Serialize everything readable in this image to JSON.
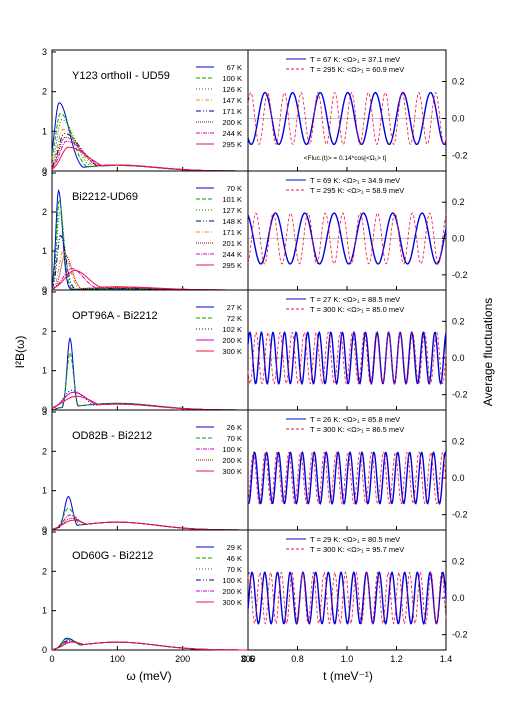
{
  "figure": {
    "left_axis_label": "I²B(ω)",
    "right_axis_label": "Average fluctuations",
    "left_xlabel": "ω (meV)",
    "right_xlabel": "t (meV⁻¹)",
    "annotation": "<Fluc.(t)> = 0.14*cos[<Ω₁> t]"
  },
  "chart_data": [
    {
      "type": "line",
      "title": "Y123 orthoII - UD59",
      "xlim": [
        0,
        0.6
      ],
      "ylim": [
        0,
        3
      ],
      "x_ticks": [
        "0",
        "100",
        "200",
        "300",
        "0.6"
      ],
      "y_ticks": [
        "0",
        "1",
        "2",
        "3"
      ],
      "legend_placement": "top-right",
      "series": [
        {
          "name": "67 K",
          "color": "#0000dd",
          "dash": "",
          "peak_x": 0.022,
          "peak_y": 1.72,
          "width_l": 0.014,
          "width_r": 0.03,
          "tail": 0.14
        },
        {
          "name": "100 K",
          "color": "#00aa00",
          "dash": "4,2",
          "peak_x": 0.026,
          "peak_y": 1.45,
          "width_l": 0.015,
          "width_r": 0.035,
          "tail": 0.14
        },
        {
          "name": "126 K",
          "color": "#008800",
          "dash": "1,2",
          "peak_x": 0.03,
          "peak_y": 1.3,
          "width_l": 0.015,
          "width_r": 0.04,
          "tail": 0.14
        },
        {
          "name": "147 K",
          "color": "#ff8800",
          "dash": "4,2,1,2",
          "peak_x": 0.034,
          "peak_y": 1.05,
          "width_l": 0.017,
          "width_r": 0.045,
          "tail": 0.14
        },
        {
          "name": "171 K",
          "color": "#000088",
          "dash": "5,2,1,2,1,2",
          "peak_x": 0.038,
          "peak_y": 0.95,
          "width_l": 0.018,
          "width_r": 0.05,
          "tail": 0.15
        },
        {
          "name": "200 K",
          "color": "#880000",
          "dash": "1,1",
          "peak_x": 0.04,
          "peak_y": 0.85,
          "width_l": 0.019,
          "width_r": 0.05,
          "tail": 0.15
        },
        {
          "name": "244 K",
          "color": "#cc00cc",
          "dash": "4,1,1,1",
          "peak_x": 0.044,
          "peak_y": 0.75,
          "width_l": 0.02,
          "width_r": 0.055,
          "tail": 0.15
        },
        {
          "name": "295 K",
          "color": "#ee1144",
          "dash": "",
          "peak_x": 0.05,
          "peak_y": 0.6,
          "width_l": 0.022,
          "width_r": 0.06,
          "tail": 0.15
        }
      ]
    },
    {
      "type": "line",
      "title": "Bi2212-UD69",
      "xlim": [
        0,
        0.6
      ],
      "ylim": [
        0,
        3
      ],
      "x_ticks": [
        "0",
        "100",
        "200",
        "300",
        "0.6"
      ],
      "y_ticks": [
        "0",
        "1",
        "2",
        "3"
      ],
      "legend_placement": "top-right",
      "series": [
        {
          "name": "70 K",
          "color": "#0000dd",
          "dash": "",
          "peak_x": 0.02,
          "peak_y": 2.55,
          "width_l": 0.008,
          "width_r": 0.012,
          "tail": 0.03
        },
        {
          "name": "101 K",
          "color": "#00aa00",
          "dash": "4,2",
          "peak_x": 0.022,
          "peak_y": 2.3,
          "width_l": 0.008,
          "width_r": 0.013,
          "tail": 0.03
        },
        {
          "name": "127 K",
          "color": "#008800",
          "dash": "1,2",
          "peak_x": 0.024,
          "peak_y": 2.0,
          "width_l": 0.009,
          "width_r": 0.014,
          "tail": 0.04
        },
        {
          "name": "148 K",
          "color": "#000088",
          "dash": "5,2,1,2,1,2",
          "peak_x": 0.026,
          "peak_y": 1.4,
          "width_l": 0.01,
          "width_r": 0.016,
          "tail": 0.04
        },
        {
          "name": "171 K",
          "color": "#ff8800",
          "dash": "4,2,1,2",
          "peak_x": 0.034,
          "peak_y": 1.0,
          "width_l": 0.012,
          "width_r": 0.02,
          "tail": 0.06
        },
        {
          "name": "201 K",
          "color": "#880000",
          "dash": "1,1",
          "peak_x": 0.04,
          "peak_y": 0.9,
          "width_l": 0.013,
          "width_r": 0.02,
          "tail": 0.06
        },
        {
          "name": "244 K",
          "color": "#cc00cc",
          "dash": "4,1,1,1",
          "peak_x": 0.06,
          "peak_y": 0.55,
          "width_l": 0.025,
          "width_r": 0.035,
          "tail": 0.08
        },
        {
          "name": "295 K",
          "color": "#ee1144",
          "dash": "",
          "peak_x": 0.07,
          "peak_y": 0.5,
          "width_l": 0.03,
          "width_r": 0.04,
          "tail": 0.08
        }
      ]
    },
    {
      "type": "line",
      "title": "OPT96A - Bi2212",
      "xlim": [
        0,
        0.6
      ],
      "ylim": [
        0,
        3
      ],
      "x_ticks": [
        "0",
        "100",
        "200",
        "300",
        "0.6"
      ],
      "y_ticks": [
        "0",
        "1",
        "2",
        "3"
      ],
      "legend_placement": "top-right",
      "series": [
        {
          "name": "27 K",
          "color": "#0000dd",
          "dash": "",
          "peak_x": 0.055,
          "peak_y": 1.82,
          "width_l": 0.009,
          "width_r": 0.01,
          "tail": 0.17
        },
        {
          "name": "72 K",
          "color": "#00aa00",
          "dash": "4,2",
          "peak_x": 0.055,
          "peak_y": 1.45,
          "width_l": 0.01,
          "width_r": 0.011,
          "tail": 0.17
        },
        {
          "name": "102 K",
          "color": "#000088",
          "dash": "1,2",
          "peak_x": 0.06,
          "peak_y": 0.5,
          "width_l": 0.025,
          "width_r": 0.04,
          "tail": 0.15
        },
        {
          "name": "200 K",
          "color": "#cc00cc",
          "dash": "",
          "peak_x": 0.065,
          "peak_y": 0.45,
          "width_l": 0.03,
          "width_r": 0.045,
          "tail": 0.15
        },
        {
          "name": "300 K",
          "color": "#ee1144",
          "dash": "",
          "peak_x": 0.075,
          "peak_y": 0.35,
          "width_l": 0.04,
          "width_r": 0.05,
          "tail": 0.15
        }
      ]
    },
    {
      "type": "line",
      "title": "OD82B - Bi2212",
      "xlim": [
        0,
        0.6
      ],
      "ylim": [
        0,
        3
      ],
      "x_ticks": [
        "0",
        "100",
        "200",
        "300",
        "0.6"
      ],
      "y_ticks": [
        "0",
        "1",
        "2",
        "3"
      ],
      "legend_placement": "top-right",
      "series": [
        {
          "name": "26 K",
          "color": "#0000dd",
          "dash": "",
          "peak_x": 0.05,
          "peak_y": 0.85,
          "width_l": 0.012,
          "width_r": 0.013,
          "tail": 0.2
        },
        {
          "name": "70 K",
          "color": "#00aa00",
          "dash": "4,2",
          "peak_x": 0.05,
          "peak_y": 0.55,
          "width_l": 0.016,
          "width_r": 0.02,
          "tail": 0.2
        },
        {
          "name": "100 K",
          "color": "#cc00cc",
          "dash": "4,1,1,1",
          "peak_x": 0.055,
          "peak_y": 0.38,
          "width_l": 0.02,
          "width_r": 0.03,
          "tail": 0.2
        },
        {
          "name": "200 K",
          "color": "#880000",
          "dash": "1,1",
          "peak_x": 0.06,
          "peak_y": 0.3,
          "width_l": 0.025,
          "width_r": 0.035,
          "tail": 0.2
        },
        {
          "name": "300 K",
          "color": "#ee1144",
          "dash": "",
          "peak_x": 0.065,
          "peak_y": 0.25,
          "width_l": 0.03,
          "width_r": 0.04,
          "tail": 0.2
        }
      ]
    },
    {
      "type": "line",
      "title": "OD60G - Bi2212",
      "xlim": [
        0,
        0.6
      ],
      "ylim": [
        0,
        3
      ],
      "x_ticks": [
        "0",
        "100",
        "200",
        "300",
        "0.6"
      ],
      "y_ticks": [
        "0",
        "1",
        "2",
        "3"
      ],
      "legend_placement": "top-right",
      "series": [
        {
          "name": "29 K",
          "color": "#0000dd",
          "dash": "",
          "peak_x": 0.045,
          "peak_y": 0.3,
          "width_l": 0.015,
          "width_r": 0.03,
          "tail": 0.2
        },
        {
          "name": "46 K",
          "color": "#00aa00",
          "dash": "4,2",
          "peak_x": 0.045,
          "peak_y": 0.28,
          "width_l": 0.016,
          "width_r": 0.032,
          "tail": 0.2
        },
        {
          "name": "70 K",
          "color": "#008800",
          "dash": "1,2",
          "peak_x": 0.05,
          "peak_y": 0.26,
          "width_l": 0.018,
          "width_r": 0.035,
          "tail": 0.2
        },
        {
          "name": "100 K",
          "color": "#000088",
          "dash": "5,2,1,2,1,2",
          "peak_x": 0.05,
          "peak_y": 0.24,
          "width_l": 0.02,
          "width_r": 0.038,
          "tail": 0.2
        },
        {
          "name": "200 K",
          "color": "#cc00cc",
          "dash": "4,1,1,1",
          "peak_x": 0.055,
          "peak_y": 0.22,
          "width_l": 0.022,
          "width_r": 0.04,
          "tail": 0.2
        },
        {
          "name": "300 K",
          "color": "#ee1144",
          "dash": "",
          "peak_x": 0.06,
          "peak_y": 0.2,
          "width_l": 0.025,
          "width_r": 0.045,
          "tail": 0.2
        }
      ]
    },
    {
      "type": "line",
      "xlim": [
        0.6,
        1.4
      ],
      "ylim": [
        -0.3,
        0.3
      ],
      "x_ticks": [
        "0.6"
      ],
      "y_ticks": [
        "-0.2",
        "0.0",
        "0.2"
      ],
      "legend_placement": "top",
      "series": [
        {
          "name": "T = 67 K: <Ω>₁ = 37.1 meV",
          "color": "#0000dd",
          "dash": "",
          "amplitude": 0.14,
          "omega_meV": 37.1
        },
        {
          "name": "T = 295 K: <Ω>₁ = 60.9 meV",
          "color": "#ee1144",
          "dash": "3,2",
          "amplitude": 0.14,
          "omega_meV": 60.9
        }
      ]
    },
    {
      "type": "line",
      "xlim": [
        0.6,
        1.4
      ],
      "ylim": [
        -0.3,
        0.3
      ],
      "x_ticks": [
        "0.6"
      ],
      "y_ticks": [
        "-0.2",
        "0.0",
        "0.2"
      ],
      "legend_placement": "top",
      "series": [
        {
          "name": "T = 69 K: <Ω>₁ = 34.9 meV",
          "color": "#0000dd",
          "dash": "",
          "amplitude": 0.14,
          "omega_meV": 34.9
        },
        {
          "name": "T = 295 K: <Ω>₁ = 58.9 meV",
          "color": "#ee1144",
          "dash": "3,2",
          "amplitude": 0.14,
          "omega_meV": 58.9
        }
      ]
    },
    {
      "type": "line",
      "xlim": [
        0.6,
        1.4
      ],
      "ylim": [
        -0.3,
        0.3
      ],
      "x_ticks": [
        "0.6"
      ],
      "y_ticks": [
        "-0.2",
        "0.0",
        "0.2"
      ],
      "legend_placement": "top",
      "series": [
        {
          "name": "T = 27 K: <Ω>₁ = 88.5 meV",
          "color": "#0000dd",
          "dash": "",
          "amplitude": 0.14,
          "omega_meV": 88.5
        },
        {
          "name": "T = 300 K: <Ω>₁ = 85.0 meV",
          "color": "#ee1144",
          "dash": "3,2",
          "amplitude": 0.14,
          "omega_meV": 85.0
        }
      ]
    },
    {
      "type": "line",
      "xlim": [
        0.6,
        1.4
      ],
      "ylim": [
        -0.3,
        0.3
      ],
      "x_ticks": [
        "0.6"
      ],
      "y_ticks": [
        "-0.2",
        "0.0",
        "0.2"
      ],
      "legend_placement": "top",
      "series": [
        {
          "name": "T = 26 K: <Ω>₁ = 85.8 meV",
          "color": "#0000dd",
          "dash": "",
          "amplitude": 0.14,
          "omega_meV": 85.8
        },
        {
          "name": "T = 300 K: <Ω>₁ = 86.5 meV",
          "color": "#ee1144",
          "dash": "3,2",
          "amplitude": 0.14,
          "omega_meV": 86.5
        }
      ]
    },
    {
      "type": "line",
      "xlim": [
        0.6,
        1.4
      ],
      "ylim": [
        -0.3,
        0.3
      ],
      "x_ticks": [
        "0.6",
        "0.8",
        "1.0",
        "1.2",
        "1.4"
      ],
      "y_ticks": [
        "-0.2",
        "0.0",
        "0.2"
      ],
      "legend_placement": "top",
      "series": [
        {
          "name": "T = 29 K: <Ω>₁ = 80.5 meV",
          "color": "#0000dd",
          "dash": "",
          "amplitude": 0.14,
          "omega_meV": 80.5
        },
        {
          "name": "T = 300 K: <Ω>₁ = 95.7 meV",
          "color": "#ee1144",
          "dash": "3,2",
          "amplitude": 0.14,
          "omega_meV": 95.7
        }
      ]
    }
  ]
}
